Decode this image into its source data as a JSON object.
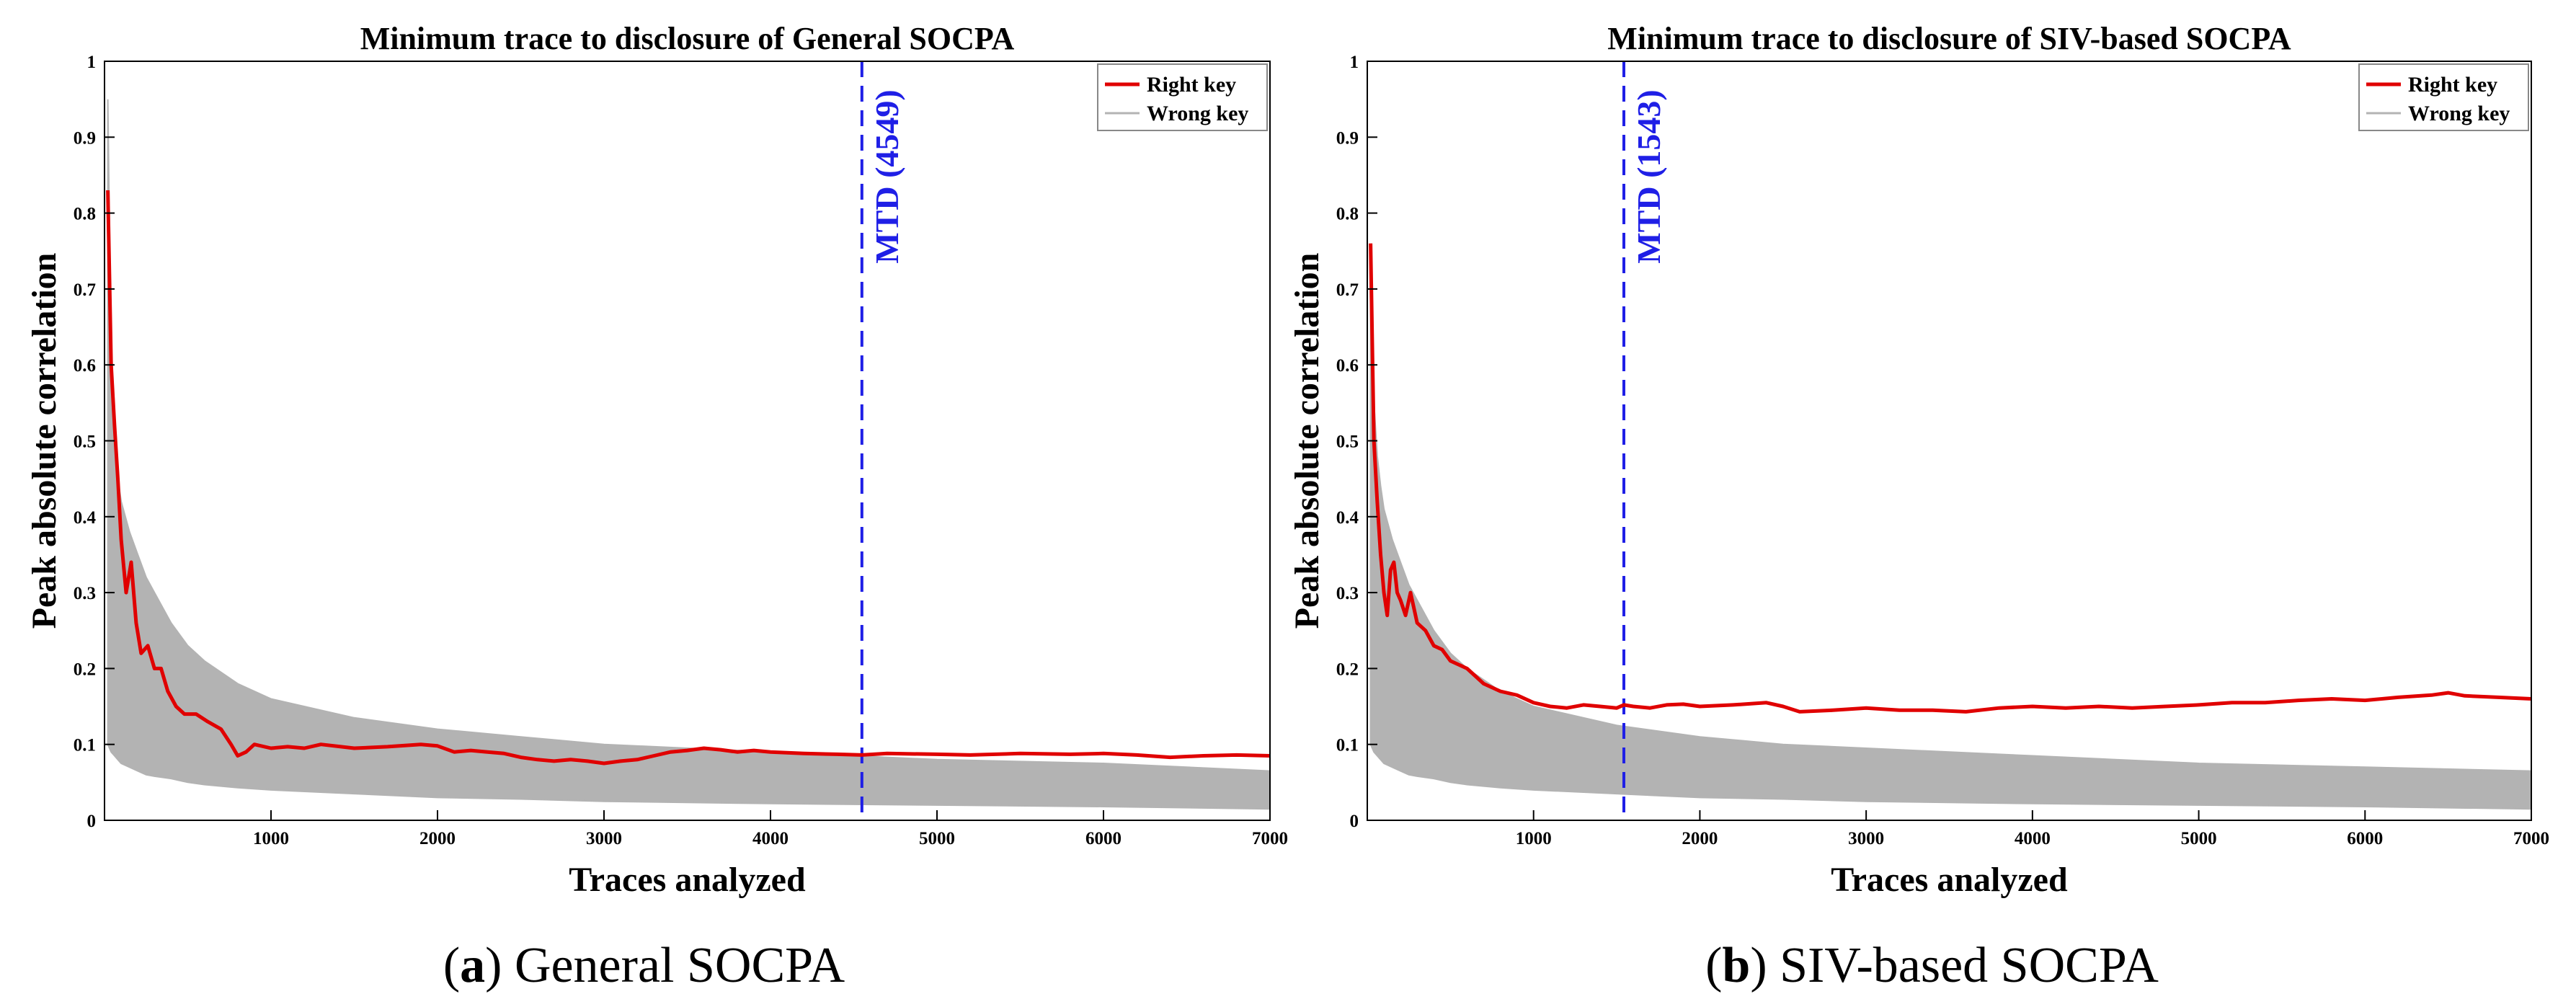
{
  "figure": {
    "captions": [
      {
        "letter": "a",
        "text": "General SOCPA"
      },
      {
        "letter": "b",
        "text": "SIV-based SOCPA"
      }
    ]
  },
  "colors": {
    "right_key": "#e00000",
    "wrong_key": "#b3b3b3",
    "mtd": "#1f1fe6",
    "axis": "#000000"
  },
  "chart_data": [
    {
      "type": "line",
      "title": "Minimum trace to disclosure of General SOCPA",
      "xlabel": "Traces analyzed",
      "ylabel": "Peak absolute correlation",
      "xlim": [
        0,
        7000
      ],
      "ylim": [
        0,
        1
      ],
      "xticks": [
        1000,
        2000,
        3000,
        4000,
        5000,
        6000,
        7000
      ],
      "yticks": [
        0,
        0.1,
        0.2,
        0.3,
        0.4,
        0.5,
        0.6,
        0.7,
        0.8,
        0.9,
        1
      ],
      "mtd": {
        "x": 4549,
        "label": "MTD (4549)"
      },
      "legend": {
        "position": "top-right",
        "entries": [
          "Right key",
          "Wrong key"
        ]
      },
      "series": [
        {
          "name": "Right key",
          "x": [
            20,
            40,
            60,
            80,
            100,
            130,
            160,
            190,
            220,
            260,
            300,
            340,
            380,
            430,
            480,
            550,
            620,
            700,
            760,
            800,
            850,
            900,
            1000,
            1100,
            1200,
            1300,
            1500,
            1700,
            1900,
            2000,
            2100,
            2200,
            2300,
            2400,
            2500,
            2600,
            2700,
            2800,
            2900,
            3000,
            3100,
            3200,
            3300,
            3400,
            3500,
            3600,
            3700,
            3800,
            3900,
            4000,
            4200,
            4400,
            4549,
            4700,
            5000,
            5200,
            5500,
            5800,
            6000,
            6200,
            6400,
            6600,
            6800,
            7000
          ],
          "values": [
            0.83,
            0.6,
            0.52,
            0.45,
            0.37,
            0.3,
            0.34,
            0.26,
            0.22,
            0.23,
            0.2,
            0.2,
            0.17,
            0.15,
            0.14,
            0.14,
            0.13,
            0.12,
            0.1,
            0.085,
            0.09,
            0.1,
            0.095,
            0.097,
            0.095,
            0.1,
            0.095,
            0.097,
            0.1,
            0.098,
            0.09,
            0.092,
            0.09,
            0.088,
            0.083,
            0.08,
            0.078,
            0.08,
            0.078,
            0.075,
            0.078,
            0.08,
            0.085,
            0.09,
            0.092,
            0.095,
            0.093,
            0.09,
            0.092,
            0.09,
            0.088,
            0.087,
            0.086,
            0.088,
            0.087,
            0.086,
            0.088,
            0.087,
            0.088,
            0.086,
            0.083,
            0.085,
            0.086,
            0.085
          ]
        },
        {
          "name": "Wrong key",
          "x": [
            20,
            40,
            60,
            80,
            100,
            150,
            200,
            250,
            300,
            400,
            500,
            600,
            800,
            1000,
            1500,
            2000,
            2500,
            3000,
            4000,
            5000,
            6000,
            7000
          ],
          "upper": [
            0.95,
            0.6,
            0.5,
            0.45,
            0.42,
            0.38,
            0.35,
            0.32,
            0.3,
            0.26,
            0.23,
            0.21,
            0.18,
            0.16,
            0.135,
            0.12,
            0.11,
            0.1,
            0.09,
            0.08,
            0.075,
            0.065
          ],
          "lower": [
            0.1,
            0.09,
            0.085,
            0.08,
            0.075,
            0.07,
            0.065,
            0.06,
            0.058,
            0.055,
            0.05,
            0.047,
            0.043,
            0.04,
            0.035,
            0.03,
            0.028,
            0.025,
            0.022,
            0.02,
            0.018,
            0.015
          ]
        }
      ]
    },
    {
      "type": "line",
      "title": "Minimum trace to disclosure of SIV-based SOCPA",
      "xlabel": "Traces analyzed",
      "ylabel": "Peak absolute correlation",
      "xlim": [
        0,
        7000
      ],
      "ylim": [
        0,
        1
      ],
      "xticks": [
        1000,
        2000,
        3000,
        4000,
        5000,
        6000,
        7000
      ],
      "yticks": [
        0,
        0.1,
        0.2,
        0.3,
        0.4,
        0.5,
        0.6,
        0.7,
        0.8,
        0.9,
        1
      ],
      "mtd": {
        "x": 1543,
        "label": "MTD (1543)"
      },
      "legend": {
        "position": "top-right",
        "entries": [
          "Right key",
          "Wrong key"
        ]
      },
      "series": [
        {
          "name": "Right key",
          "x": [
            20,
            40,
            60,
            80,
            100,
            120,
            140,
            160,
            180,
            200,
            230,
            260,
            300,
            350,
            400,
            450,
            500,
            600,
            700,
            800,
            900,
            1000,
            1100,
            1200,
            1300,
            1400,
            1500,
            1543,
            1600,
            1700,
            1800,
            1900,
            2000,
            2200,
            2400,
            2500,
            2600,
            2800,
            3000,
            3200,
            3400,
            3600,
            3800,
            4000,
            4200,
            4400,
            4600,
            4800,
            5000,
            5200,
            5400,
            5600,
            5800,
            6000,
            6200,
            6400,
            6500,
            6600,
            6800,
            7000
          ],
          "values": [
            0.76,
            0.5,
            0.42,
            0.35,
            0.3,
            0.27,
            0.33,
            0.34,
            0.3,
            0.29,
            0.27,
            0.3,
            0.26,
            0.25,
            0.23,
            0.225,
            0.21,
            0.2,
            0.18,
            0.17,
            0.165,
            0.155,
            0.15,
            0.148,
            0.152,
            0.15,
            0.148,
            0.152,
            0.15,
            0.148,
            0.152,
            0.153,
            0.15,
            0.152,
            0.155,
            0.15,
            0.143,
            0.145,
            0.148,
            0.145,
            0.145,
            0.143,
            0.148,
            0.15,
            0.148,
            0.15,
            0.148,
            0.15,
            0.152,
            0.155,
            0.155,
            0.158,
            0.16,
            0.158,
            0.162,
            0.165,
            0.168,
            0.164,
            0.162,
            0.16
          ]
        },
        {
          "name": "Wrong key",
          "x": [
            20,
            40,
            60,
            80,
            100,
            150,
            200,
            250,
            300,
            400,
            500,
            600,
            800,
            1000,
            1500,
            2000,
            2500,
            3000,
            4000,
            5000,
            6000,
            7000
          ],
          "upper": [
            0.7,
            0.55,
            0.48,
            0.44,
            0.41,
            0.37,
            0.34,
            0.31,
            0.29,
            0.25,
            0.22,
            0.2,
            0.17,
            0.15,
            0.125,
            0.11,
            0.1,
            0.095,
            0.085,
            0.075,
            0.07,
            0.065
          ],
          "lower": [
            0.1,
            0.09,
            0.085,
            0.08,
            0.075,
            0.07,
            0.065,
            0.06,
            0.058,
            0.055,
            0.05,
            0.047,
            0.043,
            0.04,
            0.035,
            0.03,
            0.028,
            0.025,
            0.022,
            0.02,
            0.018,
            0.015
          ]
        }
      ]
    }
  ]
}
